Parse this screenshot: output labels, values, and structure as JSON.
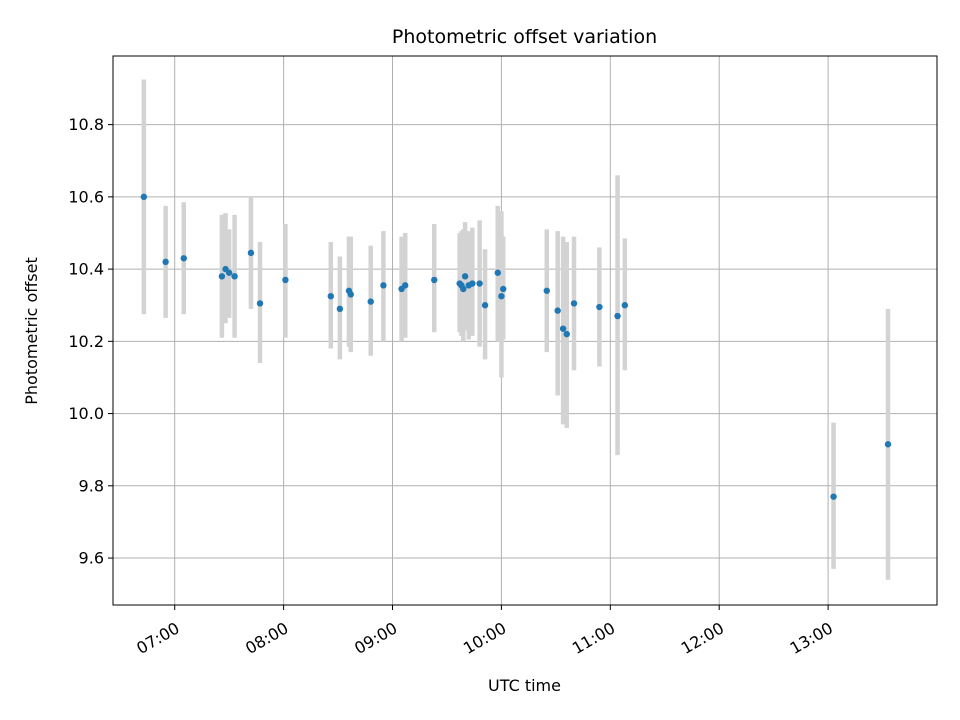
{
  "chart_data": {
    "type": "scatter",
    "title": "Photometric offset variation",
    "xlabel": "UTC time",
    "ylabel": "Photometric offset",
    "x_tick_labels": [
      "07:00",
      "08:00",
      "09:00",
      "10:00",
      "11:00",
      "12:00",
      "13:00"
    ],
    "y_tick_labels": [
      "9.6",
      "9.8",
      "10.0",
      "10.2",
      "10.4",
      "10.6",
      "10.8"
    ],
    "xlim": [
      "06:26",
      "14:00"
    ],
    "ylim": [
      9.47,
      10.99
    ],
    "grid": true,
    "point_color": "#1f77b4",
    "errorbar_color": "#d3d3d3",
    "points": [
      {
        "t": "06:43",
        "y": 10.6,
        "lo": 10.275,
        "hi": 10.925
      },
      {
        "t": "06:55",
        "y": 10.42,
        "lo": 10.265,
        "hi": 10.575
      },
      {
        "t": "07:05",
        "y": 10.43,
        "lo": 10.275,
        "hi": 10.585
      },
      {
        "t": "07:26",
        "y": 10.38,
        "lo": 10.21,
        "hi": 10.55
      },
      {
        "t": "07:28",
        "y": 10.4,
        "lo": 10.25,
        "hi": 10.555
      },
      {
        "t": "07:30",
        "y": 10.39,
        "lo": 10.265,
        "hi": 10.51
      },
      {
        "t": "07:33",
        "y": 10.38,
        "lo": 10.21,
        "hi": 10.55
      },
      {
        "t": "07:42",
        "y": 10.445,
        "lo": 10.29,
        "hi": 10.6
      },
      {
        "t": "07:47",
        "y": 10.305,
        "lo": 10.14,
        "hi": 10.475
      },
      {
        "t": "08:01",
        "y": 10.37,
        "lo": 10.21,
        "hi": 10.525
      },
      {
        "t": "08:26",
        "y": 10.325,
        "lo": 10.18,
        "hi": 10.475
      },
      {
        "t": "08:31",
        "y": 10.29,
        "lo": 10.15,
        "hi": 10.435
      },
      {
        "t": "08:36",
        "y": 10.34,
        "lo": 10.185,
        "hi": 10.49
      },
      {
        "t": "08:37",
        "y": 10.33,
        "lo": 10.17,
        "hi": 10.49
      },
      {
        "t": "08:48",
        "y": 10.31,
        "lo": 10.16,
        "hi": 10.465
      },
      {
        "t": "08:55",
        "y": 10.355,
        "lo": 10.2,
        "hi": 10.505
      },
      {
        "t": "09:05",
        "y": 10.345,
        "lo": 10.2,
        "hi": 10.49
      },
      {
        "t": "09:07",
        "y": 10.355,
        "lo": 10.21,
        "hi": 10.5
      },
      {
        "t": "09:23",
        "y": 10.37,
        "lo": 10.225,
        "hi": 10.525
      },
      {
        "t": "09:37",
        "y": 10.36,
        "lo": 10.225,
        "hi": 10.5
      },
      {
        "t": "09:38",
        "y": 10.355,
        "lo": 10.215,
        "hi": 10.505
      },
      {
        "t": "09:39",
        "y": 10.345,
        "lo": 10.2,
        "hi": 10.51
      },
      {
        "t": "09:40",
        "y": 10.38,
        "lo": 10.23,
        "hi": 10.53
      },
      {
        "t": "09:42",
        "y": 10.355,
        "lo": 10.205,
        "hi": 10.505
      },
      {
        "t": "09:44",
        "y": 10.36,
        "lo": 10.215,
        "hi": 10.515
      },
      {
        "t": "09:48",
        "y": 10.36,
        "lo": 10.185,
        "hi": 10.535
      },
      {
        "t": "09:51",
        "y": 10.3,
        "lo": 10.15,
        "hi": 10.455
      },
      {
        "t": "09:58",
        "y": 10.39,
        "lo": 10.2,
        "hi": 10.575
      },
      {
        "t": "10:00",
        "y": 10.325,
        "lo": 10.1,
        "hi": 10.56
      },
      {
        "t": "10:01",
        "y": 10.345,
        "lo": 10.205,
        "hi": 10.49
      },
      {
        "t": "10:25",
        "y": 10.34,
        "lo": 10.17,
        "hi": 10.51
      },
      {
        "t": "10:31",
        "y": 10.285,
        "lo": 10.05,
        "hi": 10.505
      },
      {
        "t": "10:34",
        "y": 10.235,
        "lo": 9.97,
        "hi": 10.49
      },
      {
        "t": "10:36",
        "y": 10.22,
        "lo": 9.96,
        "hi": 10.475
      },
      {
        "t": "10:40",
        "y": 10.305,
        "lo": 10.12,
        "hi": 10.49
      },
      {
        "t": "10:54",
        "y": 10.295,
        "lo": 10.13,
        "hi": 10.46
      },
      {
        "t": "11:04",
        "y": 10.27,
        "lo": 9.885,
        "hi": 10.66
      },
      {
        "t": "11:08",
        "y": 10.3,
        "lo": 10.12,
        "hi": 10.485
      },
      {
        "t": "13:03",
        "y": 9.77,
        "lo": 9.57,
        "hi": 9.975
      },
      {
        "t": "13:33",
        "y": 9.915,
        "lo": 9.54,
        "hi": 10.29
      }
    ]
  }
}
